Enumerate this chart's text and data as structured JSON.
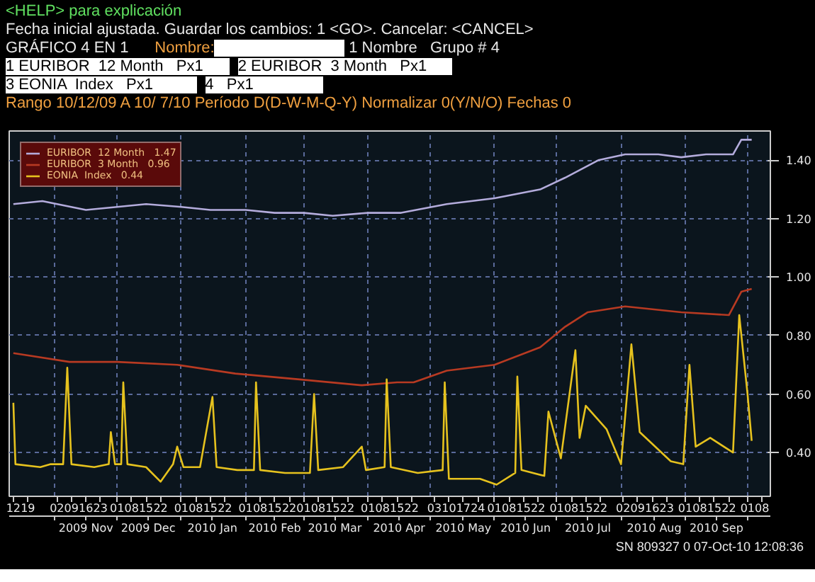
{
  "chart_data": {
    "type": "line",
    "title": "GRÁFICO 4 EN 1",
    "annotations": [
      "<HELP> para explicación",
      "Fecha inicial ajustada. Guardar los cambios: 1 <GO>. Cancelar: <CANCEL>",
      "Nombre:",
      "1 Nombre   Grupo # 4",
      "1 EURIBOR  12 Month   Px1",
      "2 EURIBOR  3 Month   Px1",
      "3 EONIA  Index   Px1",
      "4   Px1",
      "Rango 10/12/09 A 10/ 7/10 Período D(D-W-M-Q-Y) Normalizar 0(Y/N/O) Fechas 0",
      "SN 809327 0 07-Oct-10 12:08:36"
    ],
    "legend": "top left",
    "grid": true,
    "line_style": "solid",
    "xlim": [
      "2009-10-10",
      "2010-10-12"
    ],
    "x2lim": [
      "2009-10-10",
      "2010-10-12"
    ],
    "ylim": [
      0.25,
      1.5
    ],
    "yticks": [
      {
        "value": 0.4,
        "label": "0.40"
      },
      {
        "value": 0.6,
        "label": "0.60"
      },
      {
        "value": 0.8,
        "label": "0.80"
      },
      {
        "value": 1.0,
        "label": "1.00"
      },
      {
        "value": 1.2,
        "label": "1.20"
      },
      {
        "value": 1.4,
        "label": "1.40"
      }
    ],
    "xticks": [
      {
        "value": "2009-10-12",
        "label": "12"
      },
      {
        "value": "2009-10-19",
        "label": "19"
      },
      {
        "value": "2009-11-02",
        "label": "02"
      },
      {
        "value": "2009-11-09",
        "label": "09"
      },
      {
        "value": "2009-11-16",
        "label": "16"
      },
      {
        "value": "2009-11-23",
        "label": "23"
      },
      {
        "value": "2009-12-01",
        "label": "01"
      },
      {
        "value": "2009-12-08",
        "label": "08"
      },
      {
        "value": "2009-12-15",
        "label": "15"
      },
      {
        "value": "2009-12-22",
        "label": "22"
      },
      {
        "value": "2010-01-01",
        "label": "01"
      },
      {
        "value": "2010-01-08",
        "label": "08"
      },
      {
        "value": "2010-01-15",
        "label": "15"
      },
      {
        "value": "2010-01-22",
        "label": "22"
      },
      {
        "value": "2010-02-01",
        "label": "01"
      },
      {
        "value": "2010-02-08",
        "label": "08"
      },
      {
        "value": "2010-02-15",
        "label": "15"
      },
      {
        "value": "2010-02-22",
        "label": "22"
      },
      {
        "value": "2010-03-01",
        "label": "01"
      },
      {
        "value": "2010-03-08",
        "label": "08"
      },
      {
        "value": "2010-03-15",
        "label": "15"
      },
      {
        "value": "2010-03-22",
        "label": "22"
      },
      {
        "value": "2010-04-01",
        "label": "01"
      },
      {
        "value": "2010-04-08",
        "label": "08"
      },
      {
        "value": "2010-04-15",
        "label": "15"
      },
      {
        "value": "2010-04-22",
        "label": "22"
      },
      {
        "value": "2010-05-03",
        "label": "03"
      },
      {
        "value": "2010-05-10",
        "label": "10"
      },
      {
        "value": "2010-05-17",
        "label": "17"
      },
      {
        "value": "2010-05-24",
        "label": "24"
      },
      {
        "value": "2010-06-01",
        "label": "01"
      },
      {
        "value": "2010-06-08",
        "label": "08"
      },
      {
        "value": "2010-06-15",
        "label": "15"
      },
      {
        "value": "2010-06-22",
        "label": "22"
      },
      {
        "value": "2010-07-01",
        "label": "01"
      },
      {
        "value": "2010-07-08",
        "label": "08"
      },
      {
        "value": "2010-07-15",
        "label": "15"
      },
      {
        "value": "2010-07-22",
        "label": "22"
      },
      {
        "value": "2010-08-02",
        "label": "02"
      },
      {
        "value": "2010-08-09",
        "label": "09"
      },
      {
        "value": "2010-08-16",
        "label": "16"
      },
      {
        "value": "2010-08-23",
        "label": "23"
      },
      {
        "value": "2010-09-01",
        "label": "01"
      },
      {
        "value": "2010-09-08",
        "label": "08"
      },
      {
        "value": "2010-09-15",
        "label": "15"
      },
      {
        "value": "2010-09-22",
        "label": "22"
      },
      {
        "value": "2010-10-01",
        "label": "01"
      },
      {
        "value": "2010-10-08",
        "label": "08"
      }
    ],
    "x2ticks": [
      {
        "value": "2009-11-01",
        "label": null
      },
      {
        "value": "2009-11-16",
        "label": "2009 Nov"
      },
      {
        "value": "2009-12-01",
        "label": null
      },
      {
        "value": "2009-12-16",
        "label": "2009 Dec"
      },
      {
        "value": "2010-01-01",
        "label": null
      },
      {
        "value": "2010-01-16",
        "label": "2010 Jan"
      },
      {
        "value": "2010-02-01",
        "label": null
      },
      {
        "value": "2010-02-15",
        "label": "2010 Feb"
      },
      {
        "value": "2010-03-01",
        "label": null
      },
      {
        "value": "2010-03-16",
        "label": "2010 Mar"
      },
      {
        "value": "2010-04-01",
        "label": null
      },
      {
        "value": "2010-04-16",
        "label": "2010 Apr"
      },
      {
        "value": "2010-05-01",
        "label": null
      },
      {
        "value": "2010-05-17",
        "label": "2010 May"
      },
      {
        "value": "2010-06-01",
        "label": null
      },
      {
        "value": "2010-06-16",
        "label": "2010 Jun"
      },
      {
        "value": "2010-07-01",
        "label": null
      },
      {
        "value": "2010-07-16",
        "label": "2010 Jul"
      },
      {
        "value": "2010-08-01",
        "label": null
      },
      {
        "value": "2010-08-17",
        "label": "2010 Aug"
      },
      {
        "value": "2010-09-01",
        "label": null
      },
      {
        "value": "2010-09-16",
        "label": "2010 Sep"
      },
      {
        "value": "2010-10-01",
        "label": null
      }
    ],
    "series": [
      {
        "name": "EURIBOR  12 Month   1.47",
        "color": "#b4acdc",
        "x": [
          "2009-10-12",
          "2009-10-26",
          "2009-11-16",
          "2009-12-01",
          "2009-12-15",
          "2010-01-01",
          "2010-01-15",
          "2010-02-01",
          "2010-02-15",
          "2010-03-01",
          "2010-03-15",
          "2010-04-01",
          "2010-04-17",
          "2010-05-09",
          "2010-06-01",
          "2010-06-23",
          "2010-07-05",
          "2010-07-21",
          "2010-08-03",
          "2010-08-19",
          "2010-08-30",
          "2010-09-11",
          "2010-09-24",
          "2010-09-28",
          "2010-10-03"
        ],
        "values": [
          1.25,
          1.26,
          1.23,
          1.24,
          1.25,
          1.24,
          1.23,
          1.23,
          1.22,
          1.22,
          1.21,
          1.22,
          1.22,
          1.25,
          1.27,
          1.3,
          1.34,
          1.4,
          1.42,
          1.42,
          1.41,
          1.42,
          1.42,
          1.47,
          1.47
        ]
      },
      {
        "name": "EURIBOR  3 Month   0.96",
        "color": "#b83a22",
        "x": [
          "2009-10-12",
          "2009-11-08",
          "2009-12-01",
          "2009-12-30",
          "2010-01-27",
          "2010-02-27",
          "2010-03-29",
          "2010-04-15",
          "2010-04-23",
          "2010-05-09",
          "2010-06-01",
          "2010-06-23",
          "2010-07-05",
          "2010-07-16",
          "2010-08-03",
          "2010-08-30",
          "2010-09-22",
          "2010-09-28",
          "2010-10-03"
        ],
        "values": [
          0.74,
          0.71,
          0.71,
          0.7,
          0.67,
          0.65,
          0.63,
          0.64,
          0.64,
          0.68,
          0.7,
          0.76,
          0.83,
          0.88,
          0.9,
          0.88,
          0.87,
          0.95,
          0.96
        ]
      },
      {
        "name": "EONIA  Index   0.44",
        "color": "#e6c21e",
        "x": [
          "2009-10-12",
          "2009-10-13",
          "2009-10-25",
          "2009-10-30",
          "2009-11-05",
          "2009-11-07",
          "2009-11-09",
          "2009-11-20",
          "2009-11-27",
          "2009-11-28",
          "2009-11-30",
          "2009-12-03",
          "2009-12-04",
          "2009-12-06",
          "2009-12-15",
          "2009-12-22",
          "2009-12-28",
          "2009-12-30",
          "2010-01-02",
          "2010-01-10",
          "2010-01-16",
          "2010-01-18",
          "2010-01-28",
          "2010-02-05",
          "2010-02-06",
          "2010-02-08",
          "2010-02-20",
          "2010-03-04",
          "2010-03-06",
          "2010-03-08",
          "2010-03-20",
          "2010-03-29",
          "2010-03-31",
          "2010-04-09",
          "2010-04-10",
          "2010-04-12",
          "2010-04-25",
          "2010-05-07",
          "2010-05-08",
          "2010-05-10",
          "2010-05-25",
          "2010-06-02",
          "2010-06-11",
          "2010-06-12",
          "2010-06-14",
          "2010-06-25",
          "2010-06-27",
          "2010-07-03",
          "2010-07-10",
          "2010-07-12",
          "2010-07-15",
          "2010-07-25",
          "2010-08-01",
          "2010-08-06",
          "2010-08-10",
          "2010-08-25",
          "2010-08-31",
          "2010-09-03",
          "2010-09-06",
          "2010-09-13",
          "2010-09-24",
          "2010-09-27",
          "2010-10-01",
          "2010-10-03"
        ],
        "values": [
          0.57,
          0.36,
          0.35,
          0.36,
          0.36,
          0.69,
          0.36,
          0.35,
          0.36,
          0.47,
          0.36,
          0.36,
          0.64,
          0.36,
          0.35,
          0.3,
          0.36,
          0.42,
          0.35,
          0.35,
          0.59,
          0.35,
          0.34,
          0.34,
          0.64,
          0.34,
          0.33,
          0.33,
          0.6,
          0.34,
          0.35,
          0.42,
          0.34,
          0.35,
          0.65,
          0.35,
          0.33,
          0.34,
          0.64,
          0.31,
          0.31,
          0.29,
          0.33,
          0.66,
          0.34,
          0.32,
          0.54,
          0.38,
          0.75,
          0.45,
          0.56,
          0.48,
          0.36,
          0.77,
          0.47,
          0.37,
          0.36,
          0.7,
          0.42,
          0.45,
          0.4,
          0.87,
          0.6,
          0.44
        ]
      }
    ]
  }
}
